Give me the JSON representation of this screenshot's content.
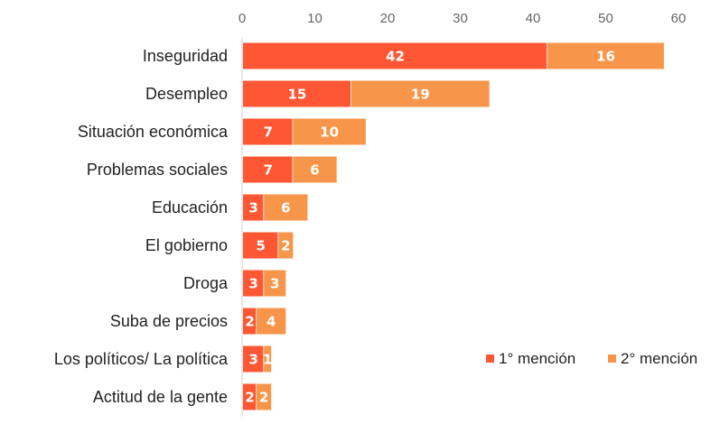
{
  "chart_data": {
    "type": "bar",
    "orientation": "horizontal",
    "stacked": true,
    "categories": [
      "Inseguridad",
      "Desempleo",
      "Situación económica",
      "Problemas sociales",
      "Educación",
      "El gobierno",
      "Droga",
      "Suba de precios",
      "Los políticos/ La política",
      "Actitud de la gente"
    ],
    "series": [
      {
        "name": "1° mención",
        "color": "#ff5733",
        "values": [
          42,
          15,
          7,
          7,
          3,
          5,
          3,
          2,
          3,
          2
        ]
      },
      {
        "name": "2° mención",
        "color": "#f7964a",
        "values": [
          16,
          19,
          10,
          6,
          6,
          2,
          3,
          4,
          1,
          2
        ]
      }
    ],
    "xlim": [
      0,
      60
    ],
    "xticks": [
      0,
      10,
      20,
      30,
      40,
      50,
      60
    ],
    "x_axis_position": "top",
    "grid": false,
    "legend_position": "bottom-right",
    "data_labels": true
  }
}
